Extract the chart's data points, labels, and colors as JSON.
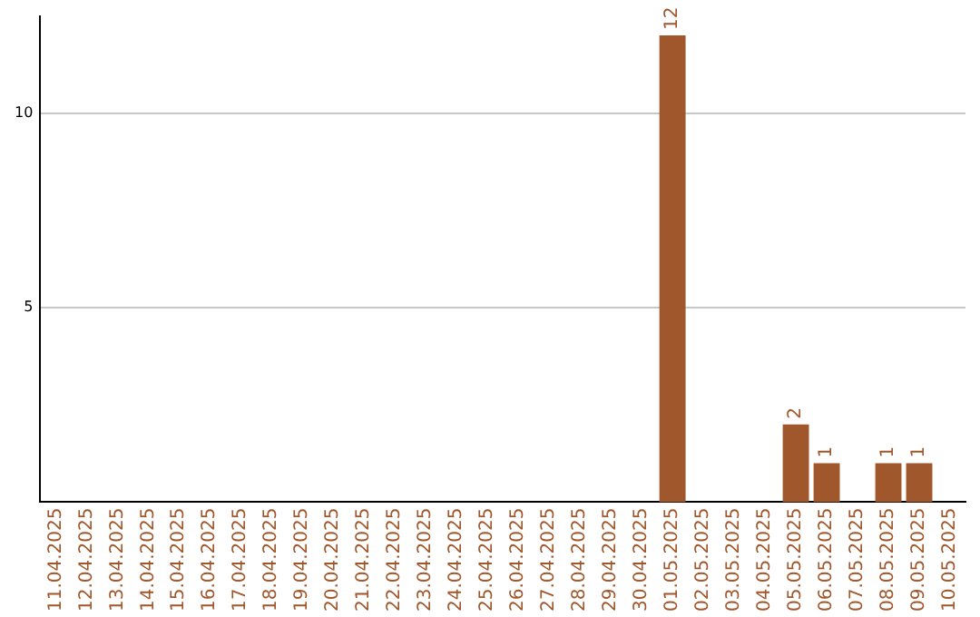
{
  "chart_data": {
    "type": "bar",
    "categories": [
      "11.04.2025",
      "12.04.2025",
      "13.04.2025",
      "14.04.2025",
      "15.04.2025",
      "16.04.2025",
      "17.04.2025",
      "18.04.2025",
      "19.04.2025",
      "20.04.2025",
      "21.04.2025",
      "22.04.2025",
      "23.04.2025",
      "24.04.2025",
      "25.04.2025",
      "26.04.2025",
      "27.04.2025",
      "28.04.2025",
      "29.04.2025",
      "30.04.2025",
      "01.05.2025",
      "02.05.2025",
      "03.05.2025",
      "04.05.2025",
      "05.05.2025",
      "06.05.2025",
      "07.05.2025",
      "08.05.2025",
      "09.05.2025",
      "10.05.2025"
    ],
    "values": [
      0,
      0,
      0,
      0,
      0,
      0,
      0,
      0,
      0,
      0,
      0,
      0,
      0,
      0,
      0,
      0,
      0,
      0,
      0,
      0,
      12,
      0,
      0,
      0,
      2,
      1,
      0,
      1,
      1,
      0
    ],
    "value_labels": [
      null,
      null,
      null,
      null,
      null,
      null,
      null,
      null,
      null,
      null,
      null,
      null,
      null,
      null,
      null,
      null,
      null,
      null,
      null,
      null,
      "12",
      null,
      null,
      null,
      "2",
      "1",
      null,
      "1",
      "1",
      null
    ],
    "color": "#a0572b",
    "ylim": [
      0,
      12.5
    ],
    "yticks": [
      5,
      10
    ],
    "grid": "y",
    "legend": false
  }
}
